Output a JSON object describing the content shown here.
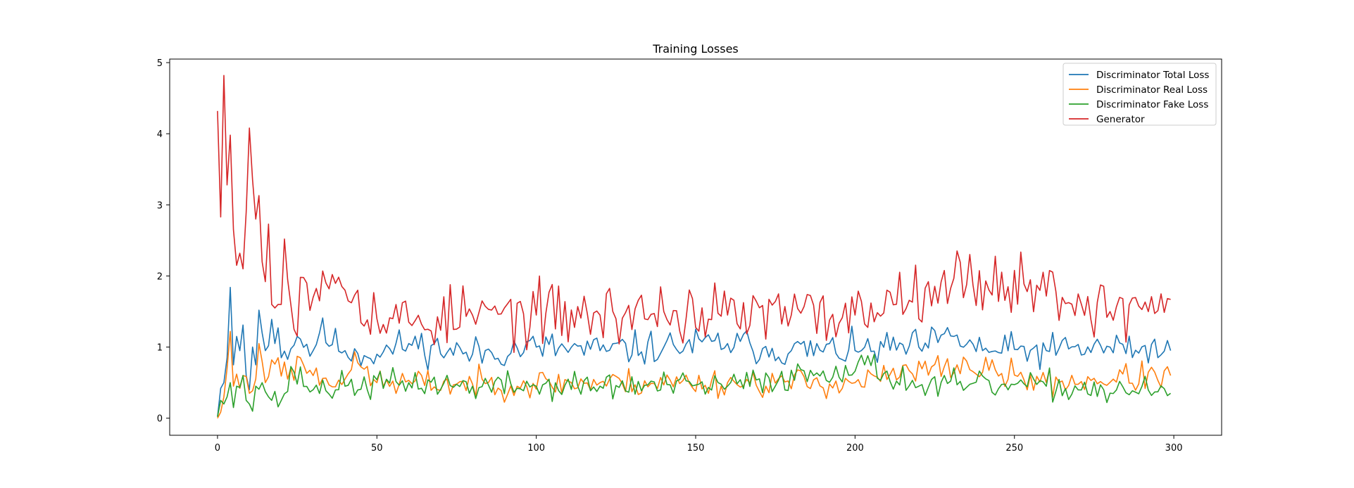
{
  "chart_data": {
    "type": "line",
    "title": "Training Losses",
    "xlabel": "",
    "ylabel": "",
    "xlim": [
      -15,
      315
    ],
    "ylim": [
      -0.24,
      5.05
    ],
    "xticks": [
      0,
      50,
      100,
      150,
      200,
      250,
      300
    ],
    "yticks": [
      0,
      1,
      2,
      3,
      4,
      5
    ],
    "grid": false,
    "legend_position": "top-right",
    "n_points": 300,
    "series": [
      {
        "name": "Discriminator Total Loss",
        "color": "#1f77b4",
        "key_points": [
          [
            0,
            0.02
          ],
          [
            1,
            0.42
          ],
          [
            2,
            0.5
          ],
          [
            3,
            0.85
          ],
          [
            4,
            1.84
          ],
          [
            5,
            0.75
          ],
          [
            6,
            1.15
          ],
          [
            7,
            0.95
          ],
          [
            8,
            1.31
          ],
          [
            9,
            0.6
          ],
          [
            10,
            0.4
          ],
          [
            11,
            1.0
          ],
          [
            12,
            0.75
          ],
          [
            13,
            1.52
          ],
          [
            14,
            1.2
          ],
          [
            15,
            0.95
          ],
          [
            17,
            1.39
          ],
          [
            18,
            1.05
          ],
          [
            19,
            1.27
          ],
          [
            20,
            0.85
          ],
          [
            25,
            1.15
          ],
          [
            30,
            0.95
          ],
          [
            32,
            1.2
          ],
          [
            40,
            0.95
          ],
          [
            50,
            0.9
          ],
          [
            60,
            1.05
          ],
          [
            80,
            0.9
          ],
          [
            100,
            1.0
          ],
          [
            120,
            0.95
          ],
          [
            140,
            1.0
          ],
          [
            160,
            1.05
          ],
          [
            180,
            0.95
          ],
          [
            200,
            0.95
          ],
          [
            220,
            1.0
          ],
          [
            231,
            1.15
          ],
          [
            240,
            0.95
          ],
          [
            260,
            0.95
          ],
          [
            280,
            1.0
          ],
          [
            299,
            0.95
          ]
        ],
        "base": 0.95,
        "amp": 0.12,
        "seed": 11
      },
      {
        "name": "Discriminator Real Loss",
        "color": "#ff7f0e",
        "key_points": [
          [
            0,
            0.0
          ],
          [
            2,
            0.3
          ],
          [
            3,
            0.7
          ],
          [
            4,
            1.22
          ],
          [
            5,
            0.45
          ],
          [
            6,
            0.62
          ],
          [
            7,
            0.42
          ],
          [
            8,
            0.6
          ],
          [
            10,
            0.35
          ],
          [
            12,
            0.55
          ],
          [
            13,
            1.05
          ],
          [
            15,
            0.5
          ],
          [
            17,
            0.82
          ],
          [
            19,
            0.85
          ],
          [
            22,
            0.55
          ],
          [
            26,
            0.85
          ],
          [
            30,
            0.6
          ],
          [
            40,
            0.55
          ],
          [
            44,
            0.78
          ],
          [
            50,
            0.5
          ],
          [
            80,
            0.48
          ],
          [
            120,
            0.5
          ],
          [
            160,
            0.5
          ],
          [
            200,
            0.5
          ],
          [
            232,
            0.75
          ],
          [
            260,
            0.5
          ],
          [
            299,
            0.6
          ]
        ],
        "base": 0.48,
        "amp": 0.1,
        "seed": 23
      },
      {
        "name": "Discriminator Fake Loss",
        "color": "#2ca02c",
        "key_points": [
          [
            0,
            0.02
          ],
          [
            1,
            0.25
          ],
          [
            2,
            0.2
          ],
          [
            3,
            0.3
          ],
          [
            4,
            0.5
          ],
          [
            5,
            0.15
          ],
          [
            6,
            0.45
          ],
          [
            8,
            0.6
          ],
          [
            9,
            0.25
          ],
          [
            10,
            0.2
          ],
          [
            12,
            0.45
          ],
          [
            14,
            0.5
          ],
          [
            16,
            0.3
          ],
          [
            20,
            0.25
          ],
          [
            24,
            0.65
          ],
          [
            30,
            0.4
          ],
          [
            40,
            0.45
          ],
          [
            60,
            0.5
          ],
          [
            80,
            0.45
          ],
          [
            100,
            0.45
          ],
          [
            120,
            0.45
          ],
          [
            160,
            0.45
          ],
          [
            203,
            0.75
          ],
          [
            220,
            0.45
          ],
          [
            260,
            0.45
          ],
          [
            299,
            0.35
          ]
        ],
        "base": 0.45,
        "amp": 0.1,
        "seed": 37
      },
      {
        "name": "Generator",
        "color": "#d62728",
        "key_points": [
          [
            0,
            4.32
          ],
          [
            1,
            2.83
          ],
          [
            2,
            4.82
          ],
          [
            3,
            3.28
          ],
          [
            4,
            3.98
          ],
          [
            5,
            2.65
          ],
          [
            6,
            2.15
          ],
          [
            7,
            2.32
          ],
          [
            8,
            2.1
          ],
          [
            9,
            2.9
          ],
          [
            10,
            4.08
          ],
          [
            11,
            3.35
          ],
          [
            12,
            2.8
          ],
          [
            13,
            3.13
          ],
          [
            14,
            2.2
          ],
          [
            15,
            1.92
          ],
          [
            16,
            2.73
          ],
          [
            17,
            1.6
          ],
          [
            18,
            1.55
          ],
          [
            19,
            1.6
          ],
          [
            20,
            1.6
          ],
          [
            21,
            2.52
          ],
          [
            22,
            1.95
          ],
          [
            23,
            1.6
          ],
          [
            24,
            1.25
          ],
          [
            26,
            1.98
          ],
          [
            28,
            1.9
          ],
          [
            30,
            1.7
          ],
          [
            33,
            2.07
          ],
          [
            36,
            2.02
          ],
          [
            40,
            1.8
          ],
          [
            44,
            1.8
          ],
          [
            50,
            1.4
          ],
          [
            55,
            1.4
          ],
          [
            60,
            1.35
          ],
          [
            80,
            1.45
          ],
          [
            100,
            1.45
          ],
          [
            120,
            1.45
          ],
          [
            140,
            1.5
          ],
          [
            160,
            1.45
          ],
          [
            180,
            1.45
          ],
          [
            200,
            1.45
          ],
          [
            223,
            1.92
          ],
          [
            241,
            1.93
          ],
          [
            257,
            1.87
          ],
          [
            280,
            1.5
          ],
          [
            299,
            1.67
          ]
        ],
        "base": 1.45,
        "amp": 0.22,
        "seed": 53
      }
    ]
  }
}
